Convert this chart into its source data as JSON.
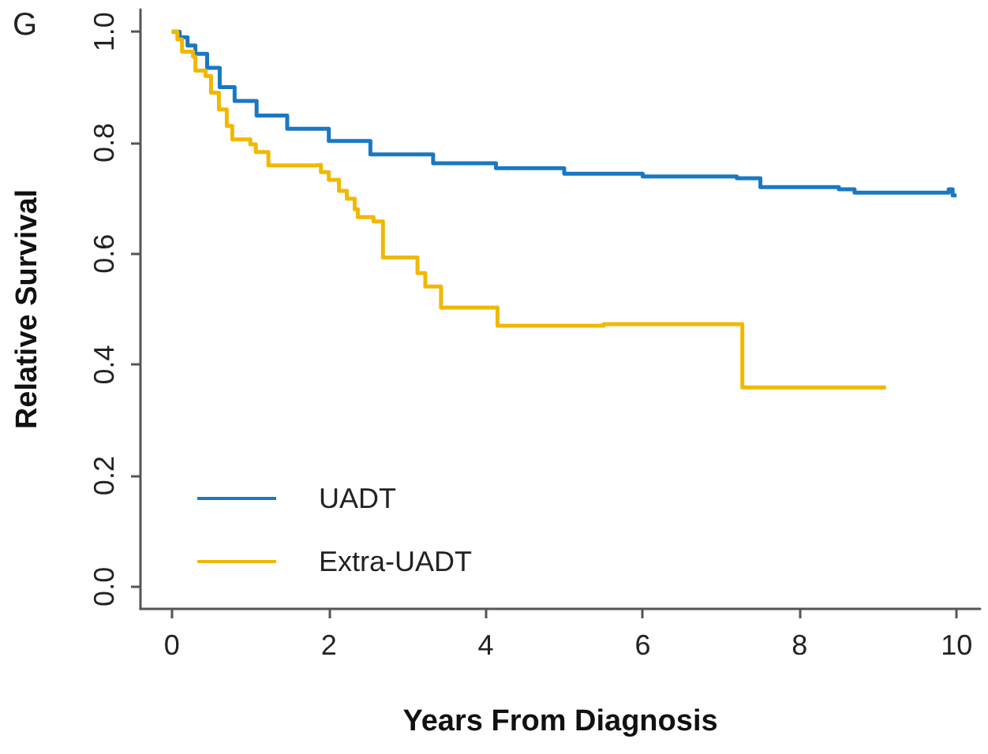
{
  "chart_data": {
    "type": "step",
    "xlabel": "Years From Diagnosis",
    "ylabel": "Relative Survival",
    "annotations": [
      "G"
    ],
    "xlim": [
      -0.4,
      10.3
    ],
    "xticks": [
      0,
      2,
      4,
      6,
      8,
      10
    ],
    "ylim": [
      -0.04,
      1.04
    ],
    "yticks": [
      {
        "value": 0,
        "label": "0.0"
      },
      0.2,
      0.4,
      0.6,
      0.8,
      {
        "value": 1,
        "label": "1.0"
      }
    ],
    "grid": false,
    "legend": "bottom left",
    "marker": "none",
    "line_style": "solid",
    "series": [
      {
        "name": "UADT",
        "color": "#1a78c2",
        "x": [
          0,
          0.1,
          0.2,
          0.3,
          0.45,
          0.61,
          0.8,
          1.08,
          1.47,
          2.0,
          2.53,
          3.33,
          4.13,
          5.0,
          6.0,
          7.2,
          7.5,
          8.5,
          8.7,
          9.9,
          9.95,
          10.0
        ],
        "values": [
          1.0,
          0.99,
          0.975,
          0.96,
          0.935,
          0.9,
          0.875,
          0.849,
          0.825,
          0.803,
          0.779,
          0.763,
          0.754,
          0.744,
          0.739,
          0.736,
          0.72,
          0.716,
          0.71,
          0.716,
          0.705,
          0.705
        ]
      },
      {
        "name": "Extra-UADT",
        "color": "#f0b800",
        "x": [
          0,
          0.07,
          0.13,
          0.27,
          0.3,
          0.43,
          0.5,
          0.6,
          0.7,
          0.77,
          1.0,
          1.07,
          1.23,
          1.83,
          1.9,
          2.0,
          2.13,
          2.23,
          2.33,
          2.37,
          2.57,
          2.69,
          3.13,
          3.23,
          3.43,
          4.15,
          5.5,
          7.27,
          9.1
        ],
        "values": [
          1.0,
          0.986,
          0.964,
          0.955,
          0.93,
          0.92,
          0.89,
          0.86,
          0.83,
          0.806,
          0.797,
          0.783,
          0.759,
          0.76,
          0.747,
          0.733,
          0.713,
          0.699,
          0.68,
          0.666,
          0.658,
          0.593,
          0.565,
          0.541,
          0.503,
          0.47,
          0.473,
          0.359,
          0.359
        ]
      }
    ]
  }
}
